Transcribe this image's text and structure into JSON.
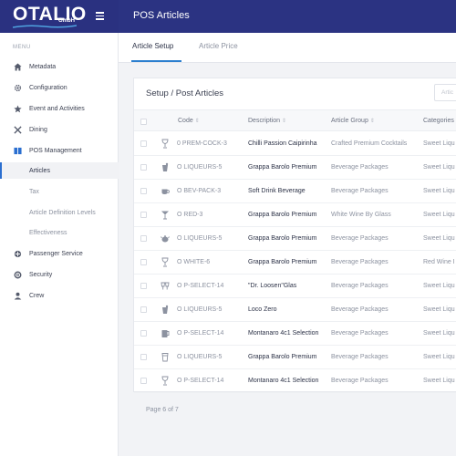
{
  "app": {
    "logo_text": "OTALIO",
    "logo_sub": "GmbH",
    "page_title": "POS Articles"
  },
  "sidebar": {
    "heading": "MENU",
    "items": [
      {
        "label": "Metadata",
        "icon": "home-icon"
      },
      {
        "label": "Configuration",
        "icon": "gear-icon"
      },
      {
        "label": "Event and Activities",
        "icon": "star-icon"
      },
      {
        "label": "Dining",
        "icon": "utensils-icon"
      },
      {
        "label": "POS Management",
        "icon": "book-icon"
      },
      {
        "label": "Passenger Service",
        "icon": "passenger-icon"
      },
      {
        "label": "Security",
        "icon": "lifebuoy-icon"
      },
      {
        "label": "Crew",
        "icon": "user-icon"
      }
    ],
    "subitems": [
      {
        "label": "Articles",
        "active": true
      },
      {
        "label": "Tax"
      },
      {
        "label": "Article Definition Levels"
      },
      {
        "label": "Effectiveness"
      }
    ]
  },
  "tabs": [
    {
      "label": "Article Setup",
      "active": true
    },
    {
      "label": "Article Price"
    }
  ],
  "card": {
    "title": "Setup / Post Articles",
    "search_placeholder": "Artic"
  },
  "table": {
    "columns": [
      "Code",
      "Description",
      "Article Group",
      "Categories"
    ],
    "rows": [
      {
        "icon": "wine-glass-icon",
        "code": "0 PREM-COCK-3",
        "description": "Chilli Passion Caipirinha",
        "group": "Crafted Premium Cocktails",
        "category": "Sweet Liqu"
      },
      {
        "icon": "shot-glass-icon",
        "code": "O LIQUEURS-5",
        "description": "Grappa Barolo Premium",
        "group": "Beverage Packages",
        "category": "Sweet Liqu"
      },
      {
        "icon": "coffee-cup-icon",
        "code": "O BEV-PACK-3",
        "description": "Soft Drink Beverage",
        "group": "Beverage Packages",
        "category": "Sweet Liqu"
      },
      {
        "icon": "cocktail-icon",
        "code": "O RED-3",
        "description": "Grappa Barolo Premium",
        "group": "White Wine By Glass",
        "category": "Sweet Liqu"
      },
      {
        "icon": "teapot-icon",
        "code": "O LIQUEURS-5",
        "description": "Grappa Barolo Premium",
        "group": "Beverage Packages",
        "category": "Sweet Liqu"
      },
      {
        "icon": "wine-glass-icon",
        "code": "O WHITE-6",
        "description": "Grappa Barolo Premium",
        "group": "Beverage Packages",
        "category": "Red Wine I"
      },
      {
        "icon": "cheers-icon",
        "code": "O P-SELECT-14",
        "description": "\"Dr. Loosen\"Glas",
        "group": "Beverage Packages",
        "category": "Sweet Liqu"
      },
      {
        "icon": "shot-glass-icon",
        "code": "O LIQUEURS-5",
        "description": "Loco Zero",
        "group": "Beverage Packages",
        "category": "Sweet Liqu"
      },
      {
        "icon": "mug-icon",
        "code": "O P-SELECT-14",
        "description": "Montanaro 4c1 Selection",
        "group": "Beverage Packages",
        "category": "Sweet Liqu"
      },
      {
        "icon": "beer-glass-icon",
        "code": "O LIQUEURS-5",
        "description": "Grappa Barolo Premium",
        "group": "Beverage Packages",
        "category": "Sweet Liqu"
      },
      {
        "icon": "wine-glass-icon",
        "code": "O P-SELECT-14",
        "description": "Montanaro 4c1 Selection",
        "group": "Beverage Packages",
        "category": "Sweet Liqu"
      }
    ]
  },
  "pager": {
    "label": "Page 6 of 7"
  }
}
